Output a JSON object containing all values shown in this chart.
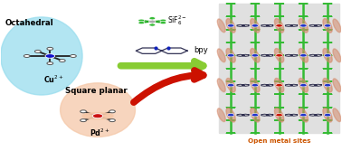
{
  "bg_color": "#ffffff",
  "octahedral_color": "#99ddee",
  "octahedral_label": "Octahedral",
  "octahedral_ion": "Cu$^{2+}$",
  "octahedral_atom_color": "#1111cc",
  "square_planar_color": "#f5c8a8",
  "square_planar_label": "Square planar",
  "square_planar_ion": "Pd$^{2+}$",
  "square_planar_atom_color": "#cc1111",
  "sif6_label": "SiF$_6^{2-}$",
  "bpy_label": "bpy",
  "open_metal_label": "Open metal sites",
  "open_metal_color": "#cc5500",
  "mof_bg": "#e8e8e8",
  "green_arrow_color": "#88cc33",
  "red_arrow_color": "#cc1100",
  "bond_color": "#222222",
  "ligand_color": "#333355",
  "green_pillar_color": "#33bb33",
  "blue_atom_color": "#2233cc",
  "red_atom_color": "#cc1100",
  "salmon_ellipse": "#d4896a"
}
